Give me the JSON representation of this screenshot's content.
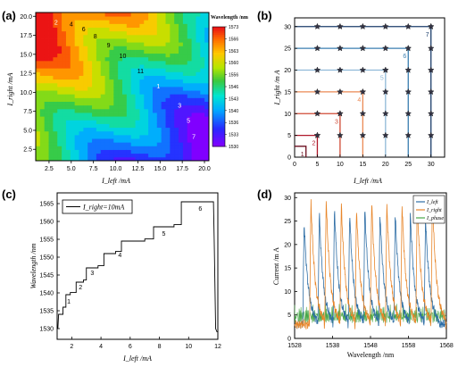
{
  "panels": [
    {
      "label": "(a)"
    },
    {
      "label": "(b)"
    },
    {
      "label": "(c)"
    },
    {
      "label": "(d)"
    }
  ],
  "chart_data": [
    {
      "panel": "(a)",
      "type": "heatmap",
      "xlabel": "I_left /mA",
      "ylabel": "I_right /mA",
      "xticks": [
        "2.5",
        "5.0",
        "7.5",
        "10.0",
        "12.5",
        "15.0",
        "17.5",
        "20.0"
      ],
      "yticks": [
        "2.5",
        "5.0",
        "7.5",
        "10.0",
        "12.5",
        "15.0",
        "17.5",
        "20.0"
      ],
      "xlim": [
        1,
        20.5
      ],
      "ylim": [
        1,
        20.5
      ],
      "colorbar": {
        "title": "Wavelength /nm",
        "ticks": [
          "1573",
          "1566",
          "1563",
          "1560",
          "1556",
          "1546",
          "1543",
          "1540",
          "1536",
          "1533",
          "1530"
        ]
      },
      "annotations": [
        {
          "text": "1",
          "x": 14.8,
          "y": 10.8,
          "color": "#ffffff"
        },
        {
          "text": "2",
          "x": 3.3,
          "y": 19.2,
          "color": "#ffffff"
        },
        {
          "text": "3",
          "x": 17.2,
          "y": 8.3,
          "color": "#ffffff"
        },
        {
          "text": "4",
          "x": 5.0,
          "y": 19.0,
          "color": "#000000"
        },
        {
          "text": "5",
          "x": 18.2,
          "y": 6.3,
          "color": "#ffffff"
        },
        {
          "text": "6",
          "x": 6.4,
          "y": 18.3,
          "color": "#000000"
        },
        {
          "text": "7",
          "x": 18.8,
          "y": 4.2,
          "color": "#ffffff"
        },
        {
          "text": "8",
          "x": 7.7,
          "y": 17.4,
          "color": "#000000"
        },
        {
          "text": "9",
          "x": 9.2,
          "y": 16.2,
          "color": "#000000"
        },
        {
          "text": "10",
          "x": 10.8,
          "y": 14.8,
          "color": "#000000"
        },
        {
          "text": "11",
          "x": 12.8,
          "y": 12.8,
          "color": "#000000"
        }
      ]
    },
    {
      "panel": "(b)",
      "type": "line",
      "xlabel": "I_left /mA",
      "ylabel": "I_right /m A",
      "xlim": [
        0,
        33
      ],
      "ylim": [
        0,
        32
      ],
      "xticks": [
        0,
        5,
        10,
        15,
        20,
        25,
        30
      ],
      "yticks": [
        0,
        5,
        10,
        15,
        20,
        25,
        30
      ],
      "series": [
        {
          "label": "1",
          "level": 2.5,
          "color": "#6b0d1e"
        },
        {
          "label": "2",
          "level": 5,
          "color": "#b0182a"
        },
        {
          "label": "3",
          "level": 10,
          "color": "#cf4a35"
        },
        {
          "label": "4",
          "level": 15,
          "color": "#eb8a55"
        },
        {
          "label": "5",
          "level": 20,
          "color": "#8fb9d8"
        },
        {
          "label": "6",
          "level": 25,
          "color": "#3a7fb0"
        },
        {
          "label": "7",
          "level": 30,
          "color": "#1b3d6b"
        }
      ],
      "grid_points": [
        5,
        10,
        15,
        20,
        25,
        30
      ]
    },
    {
      "panel": "(c)",
      "type": "line",
      "xlabel": "I_left /mA",
      "ylabel": "Wavelength /nm",
      "legend": "I_right=10mA",
      "xlim": [
        1,
        12
      ],
      "ylim": [
        1527,
        1568
      ],
      "xticks": [
        2,
        4,
        6,
        8,
        10,
        12
      ],
      "yticks": [
        1530,
        1535,
        1540,
        1545,
        1550,
        1555,
        1560,
        1565
      ],
      "steps": [
        {
          "x": [
            1.2,
            1.4
          ],
          "y": 1534
        },
        {
          "x": [
            1.4,
            1.6
          ],
          "y": 1536
        },
        {
          "x": [
            1.6,
            1.9
          ],
          "y": 1539.5
        },
        {
          "x": [
            2.3,
            2.8
          ],
          "y": 1543
        },
        {
          "x": [
            3.0,
            3.8
          ],
          "y": 1547
        },
        {
          "x": [
            4.2,
            5.0
          ],
          "y": 1551
        },
        {
          "x": [
            5.4,
            7.0
          ],
          "y": 1554.5
        },
        {
          "x": [
            7.6,
            9.0
          ],
          "y": 1558.5
        },
        {
          "x": [
            9.5,
            11.7
          ],
          "y": 1565.5
        }
      ],
      "step_labels": [
        {
          "text": "1",
          "x": 1.8,
          "y": 1537
        },
        {
          "text": "2",
          "x": 2.6,
          "y": 1541
        },
        {
          "text": "3",
          "x": 3.4,
          "y": 1545
        },
        {
          "text": "4",
          "x": 5.3,
          "y": 1550
        },
        {
          "text": "5",
          "x": 8.3,
          "y": 1556
        },
        {
          "text": "6",
          "x": 10.8,
          "y": 1563
        }
      ]
    },
    {
      "panel": "(d)",
      "type": "line",
      "xlabel": "Wavelength /nm",
      "ylabel": "Current /m A",
      "xlim": [
        1528,
        1568
      ],
      "ylim": [
        0,
        31
      ],
      "xticks": [
        "1528",
        "1538",
        "1548",
        "1558",
        "1568"
      ],
      "yticks": [
        0,
        5,
        10,
        15,
        20,
        25,
        30
      ],
      "legend": [
        {
          "name": "I_left",
          "color": "#2e6ea6"
        },
        {
          "name": "I_right",
          "color": "#e8862a"
        },
        {
          "name": "I_phase",
          "color": "#4aa84a"
        }
      ],
      "left_peaks": [
        1530.5,
        1534.5,
        1538.5,
        1542.5,
        1546.5,
        1550.5,
        1554.5,
        1558.5,
        1562.5
      ],
      "left_peak_values": [
        25,
        27,
        28,
        27,
        28,
        27,
        27,
        27,
        26
      ],
      "right_peaks": [
        1532.3,
        1536.3,
        1540.3,
        1544.3,
        1548.3,
        1552.3,
        1556.3,
        1560.3,
        1564.3
      ],
      "right_peak_values": [
        29.5,
        30,
        29,
        28,
        29.5,
        29,
        29,
        30,
        30
      ]
    }
  ]
}
